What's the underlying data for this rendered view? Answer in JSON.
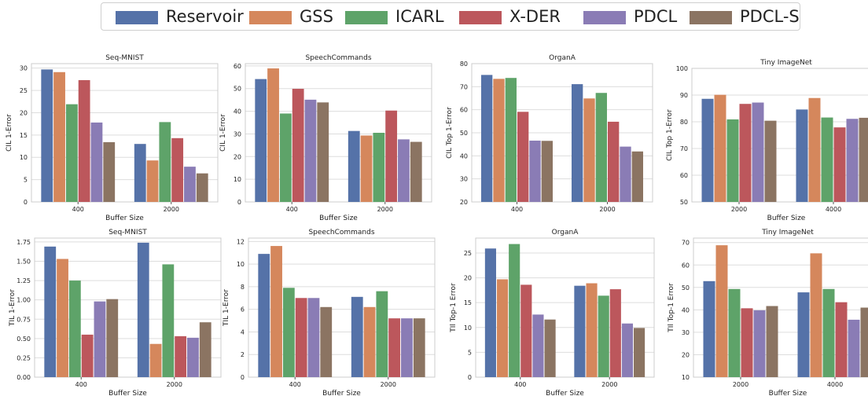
{
  "colors": {
    "Reservoir": "#5572a8",
    "GSS": "#d5875c",
    "ICARL": "#5ea369",
    "X-DER": "#bc575c",
    "PDCL": "#8a7cb5",
    "PDCL-S": "#8b7462",
    "grid": "#dddddd",
    "axis": "#cccccc",
    "text": "#222222"
  },
  "legend": {
    "items": [
      "Reservoir",
      "GSS",
      "ICARL",
      "X-DER",
      "PDCL",
      "PDCL-S"
    ]
  },
  "chart_data": [
    {
      "type": "bar",
      "title": "Seq-MNIST",
      "xlabel": "Buffer Size",
      "ylabel": "CIL 1-Error",
      "categories": [
        "400",
        "2000"
      ],
      "ylim": [
        0,
        31
      ],
      "yticks": [
        "0",
        "5",
        "10",
        "15",
        "20",
        "25",
        "30"
      ],
      "series": [
        {
          "name": "Reservoir",
          "values": [
            29.7,
            13.0
          ]
        },
        {
          "name": "GSS",
          "values": [
            29.1,
            9.3
          ]
        },
        {
          "name": "ICARL",
          "values": [
            21.9,
            17.9
          ]
        },
        {
          "name": "X-DER",
          "values": [
            27.3,
            14.3
          ]
        },
        {
          "name": "PDCL",
          "values": [
            17.8,
            7.9
          ]
        },
        {
          "name": "PDCL-S",
          "values": [
            13.4,
            6.4
          ]
        }
      ]
    },
    {
      "type": "bar",
      "title": "SpeechCommands",
      "xlabel": "Buffer Size",
      "ylabel": "CIL 1-Error",
      "categories": [
        "400",
        "2000"
      ],
      "ylim": [
        0,
        61
      ],
      "yticks": [
        "0",
        "10",
        "20",
        "30",
        "40",
        "50",
        "60"
      ],
      "series": [
        {
          "name": "Reservoir",
          "values": [
            54.2,
            31.3
          ]
        },
        {
          "name": "GSS",
          "values": [
            58.9,
            29.3
          ]
        },
        {
          "name": "ICARL",
          "values": [
            39.0,
            30.5
          ]
        },
        {
          "name": "X-DER",
          "values": [
            49.9,
            40.3
          ]
        },
        {
          "name": "PDCL",
          "values": [
            45.1,
            27.6
          ]
        },
        {
          "name": "PDCL-S",
          "values": [
            43.9,
            26.5
          ]
        }
      ]
    },
    {
      "type": "bar",
      "title": "OrganA",
      "xlabel": "",
      "ylabel": "CIL Top 1-Error",
      "categories": [
        "400",
        "2000"
      ],
      "ylim": [
        20,
        80
      ],
      "yticks": [
        "20",
        "30",
        "40",
        "50",
        "60",
        "70",
        "80"
      ],
      "series": [
        {
          "name": "Reservoir",
          "values": [
            75.1,
            71.1
          ]
        },
        {
          "name": "GSS",
          "values": [
            73.4,
            64.9
          ]
        },
        {
          "name": "ICARL",
          "values": [
            73.8,
            67.3
          ]
        },
        {
          "name": "X-DER",
          "values": [
            59.1,
            54.8
          ]
        },
        {
          "name": "PDCL",
          "values": [
            46.6,
            44.0
          ]
        },
        {
          "name": "PDCL-S",
          "values": [
            46.5,
            41.9
          ]
        }
      ]
    },
    {
      "type": "bar",
      "title": "Tiny ImageNet",
      "xlabel": "Buffer Size",
      "ylabel": "CIL Top 1-Error",
      "categories": [
        "2000",
        "4000"
      ],
      "ylim": [
        50,
        100
      ],
      "yticks": [
        "50",
        "60",
        "70",
        "80",
        "90",
        "100"
      ],
      "series": [
        {
          "name": "Reservoir",
          "values": [
            88.6,
            84.6
          ]
        },
        {
          "name": "GSS",
          "values": [
            90.1,
            88.9
          ]
        },
        {
          "name": "ICARL",
          "values": [
            80.9,
            81.6
          ]
        },
        {
          "name": "X-DER",
          "values": [
            86.7,
            77.9
          ]
        },
        {
          "name": "PDCL",
          "values": [
            87.2,
            81.1
          ]
        },
        {
          "name": "PDCL-S",
          "values": [
            80.4,
            81.5
          ]
        }
      ]
    },
    {
      "type": "bar",
      "title": "Seq-MNIST",
      "xlabel": "Buffer Size",
      "ylabel": "TIL 1-Error",
      "categories": [
        "400",
        "2000"
      ],
      "ylim": [
        0,
        1.8
      ],
      "yticks": [
        "0.00",
        "0.25",
        "0.50",
        "0.75",
        "1.00",
        "1.25",
        "1.50",
        "1.75"
      ],
      "series": [
        {
          "name": "Reservoir",
          "values": [
            1.69,
            1.74
          ]
        },
        {
          "name": "GSS",
          "values": [
            1.53,
            0.43
          ]
        },
        {
          "name": "ICARL",
          "values": [
            1.25,
            1.46
          ]
        },
        {
          "name": "X-DER",
          "values": [
            0.55,
            0.53
          ]
        },
        {
          "name": "PDCL",
          "values": [
            0.98,
            0.51
          ]
        },
        {
          "name": "PDCL-S",
          "values": [
            1.01,
            0.71
          ]
        }
      ]
    },
    {
      "type": "bar",
      "title": "SpeechCommands",
      "xlabel": "Buffer Size",
      "ylabel": "TIL 1-Error",
      "categories": [
        "400",
        "2000"
      ],
      "ylim": [
        0,
        12.3
      ],
      "yticks": [
        "0",
        "2",
        "4",
        "6",
        "8",
        "10",
        "12"
      ],
      "series": [
        {
          "name": "Reservoir",
          "values": [
            10.9,
            7.1
          ]
        },
        {
          "name": "GSS",
          "values": [
            11.6,
            6.2
          ]
        },
        {
          "name": "ICARL",
          "values": [
            7.9,
            7.6
          ]
        },
        {
          "name": "X-DER",
          "values": [
            7.0,
            5.2
          ]
        },
        {
          "name": "PDCL",
          "values": [
            7.0,
            5.2
          ]
        },
        {
          "name": "PDCL-S",
          "values": [
            6.2,
            5.2
          ]
        }
      ]
    },
    {
      "type": "bar",
      "title": "OrganA",
      "xlabel": "Buffer Size",
      "ylabel": "TIl Top-1 Error",
      "categories": [
        "400",
        "2000"
      ],
      "ylim": [
        0,
        28
      ],
      "yticks": [
        "0",
        "5",
        "10",
        "15",
        "20",
        "25"
      ],
      "series": [
        {
          "name": "Reservoir",
          "values": [
            25.9,
            18.4
          ]
        },
        {
          "name": "GSS",
          "values": [
            19.7,
            18.9
          ]
        },
        {
          "name": "ICARL",
          "values": [
            26.8,
            16.4
          ]
        },
        {
          "name": "X-DER",
          "values": [
            18.6,
            17.7
          ]
        },
        {
          "name": "PDCL",
          "values": [
            12.6,
            10.8
          ]
        },
        {
          "name": "PDCL-S",
          "values": [
            11.6,
            9.9
          ]
        }
      ]
    },
    {
      "type": "bar",
      "title": "Tiny ImageNet",
      "xlabel": "Buffer Size",
      "ylabel": "TIl Top-1 Error",
      "categories": [
        "2000",
        "4000"
      ],
      "ylim": [
        10,
        72
      ],
      "yticks": [
        "10",
        "20",
        "30",
        "40",
        "50",
        "60",
        "70"
      ],
      "series": [
        {
          "name": "Reservoir",
          "values": [
            52.8,
            47.8
          ]
        },
        {
          "name": "GSS",
          "values": [
            68.8,
            65.2
          ]
        },
        {
          "name": "ICARL",
          "values": [
            49.3,
            49.3
          ]
        },
        {
          "name": "X-DER",
          "values": [
            40.7,
            43.4
          ]
        },
        {
          "name": "PDCL",
          "values": [
            39.8,
            35.6
          ]
        },
        {
          "name": "PDCL-S",
          "values": [
            41.7,
            41.0
          ]
        }
      ]
    }
  ]
}
